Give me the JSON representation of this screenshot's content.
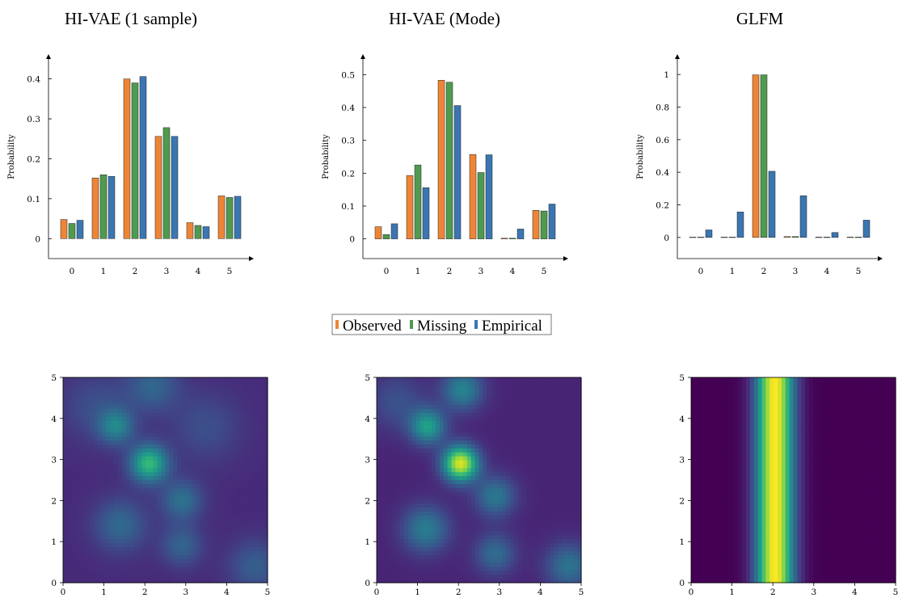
{
  "colors": {
    "observed": "#ee8536",
    "missing": "#4f9a4f",
    "empirical": "#3b76b1",
    "heat_low": "#440154",
    "heat_high": "#fde725"
  },
  "legend": [
    "Observed",
    "Missing",
    "Empirical"
  ],
  "chart_data": [
    {
      "type": "bar",
      "title": "HI-VAE (1 sample)",
      "ylabel": "Probability",
      "categories": [
        "0",
        "1",
        "2",
        "3",
        "4",
        "5"
      ],
      "yticks": [
        "0",
        "0.1",
        "0.2",
        "0.3",
        "0.4"
      ],
      "ylim": [
        -0.05,
        0.46
      ],
      "series": [
        {
          "name": "Observed",
          "values": [
            0.048,
            0.152,
            0.4,
            0.256,
            0.04,
            0.107
          ]
        },
        {
          "name": "Missing",
          "values": [
            0.038,
            0.16,
            0.39,
            0.278,
            0.033,
            0.103
          ]
        },
        {
          "name": "Empirical",
          "values": [
            0.046,
            0.156,
            0.406,
            0.256,
            0.03,
            0.106
          ]
        }
      ]
    },
    {
      "type": "bar",
      "title": "HI-VAE (Mode)",
      "ylabel": "Probability",
      "categories": [
        "0",
        "1",
        "2",
        "3",
        "4",
        "5"
      ],
      "yticks": [
        "0",
        "0.1",
        "0.2",
        "0.3",
        "0.4",
        "0.5"
      ],
      "ylim": [
        -0.06,
        0.56
      ],
      "series": [
        {
          "name": "Observed",
          "values": [
            0.037,
            0.193,
            0.483,
            0.257,
            0.002,
            0.087
          ]
        },
        {
          "name": "Missing",
          "values": [
            0.013,
            0.225,
            0.477,
            0.202,
            0.002,
            0.085
          ]
        },
        {
          "name": "Empirical",
          "values": [
            0.046,
            0.156,
            0.406,
            0.256,
            0.03,
            0.106
          ]
        }
      ]
    },
    {
      "type": "bar",
      "title": "GLFM",
      "ylabel": "Probability",
      "categories": [
        "0",
        "1",
        "2",
        "3",
        "4",
        "5"
      ],
      "yticks": [
        "0",
        "0.2",
        "0.4",
        "0.6",
        "0.8",
        "1"
      ],
      "ylim": [
        -0.13,
        1.12
      ],
      "series": [
        {
          "name": "Observed",
          "values": [
            0.002,
            0.002,
            0.998,
            0.005,
            0.002,
            0.002
          ]
        },
        {
          "name": "Missing",
          "values": [
            0.002,
            0.002,
            0.998,
            0.005,
            0.002,
            0.002
          ]
        },
        {
          "name": "Empirical",
          "values": [
            0.046,
            0.156,
            0.406,
            0.256,
            0.03,
            0.106
          ]
        }
      ]
    },
    {
      "type": "heatmap",
      "xlim": [
        0,
        5
      ],
      "ylim": [
        0,
        5
      ],
      "xticks": [
        "0",
        "1",
        "2",
        "3",
        "4",
        "5"
      ],
      "yticks": [
        "0",
        "1",
        "2",
        "3",
        "4",
        "5"
      ],
      "base": 0.12,
      "blobs": [
        {
          "x": 2.1,
          "y": 2.9,
          "sigma": 0.32,
          "intensity": 0.55
        },
        {
          "x": 1.3,
          "y": 3.8,
          "sigma": 0.3,
          "intensity": 0.3
        },
        {
          "x": 2.9,
          "y": 2.0,
          "sigma": 0.35,
          "intensity": 0.25
        },
        {
          "x": 1.4,
          "y": 1.4,
          "sigma": 0.45,
          "intensity": 0.22
        },
        {
          "x": 2.9,
          "y": 0.9,
          "sigma": 0.35,
          "intensity": 0.2
        },
        {
          "x": 2.2,
          "y": 4.8,
          "sigma": 0.45,
          "intensity": 0.2
        },
        {
          "x": 4.7,
          "y": 0.4,
          "sigma": 0.45,
          "intensity": 0.18
        },
        {
          "x": 0.8,
          "y": 4.3,
          "sigma": 0.6,
          "intensity": 0.12
        },
        {
          "x": 3.5,
          "y": 3.8,
          "sigma": 0.6,
          "intensity": 0.12
        }
      ]
    },
    {
      "type": "heatmap",
      "xlim": [
        0,
        5
      ],
      "ylim": [
        0,
        5
      ],
      "xticks": [
        "0",
        "1",
        "2",
        "3",
        "4",
        "5"
      ],
      "yticks": [
        "0",
        "1",
        "2",
        "3",
        "4",
        "5"
      ],
      "base": 0.1,
      "blobs": [
        {
          "x": 2.05,
          "y": 2.9,
          "sigma": 0.3,
          "intensity": 0.85
        },
        {
          "x": 1.25,
          "y": 3.8,
          "sigma": 0.3,
          "intensity": 0.45
        },
        {
          "x": 2.1,
          "y": 4.7,
          "sigma": 0.35,
          "intensity": 0.35
        },
        {
          "x": 2.9,
          "y": 2.1,
          "sigma": 0.35,
          "intensity": 0.3
        },
        {
          "x": 1.2,
          "y": 1.3,
          "sigma": 0.4,
          "intensity": 0.32
        },
        {
          "x": 2.9,
          "y": 0.7,
          "sigma": 0.35,
          "intensity": 0.25
        },
        {
          "x": 4.7,
          "y": 0.4,
          "sigma": 0.4,
          "intensity": 0.28
        },
        {
          "x": 0.5,
          "y": 4.4,
          "sigma": 0.5,
          "intensity": 0.15
        }
      ]
    },
    {
      "type": "heatmap",
      "xlim": [
        0,
        5
      ],
      "ylim": [
        0,
        5
      ],
      "xticks": [
        "0",
        "1",
        "2",
        "3",
        "4",
        "5"
      ],
      "yticks": [
        "0",
        "1",
        "2",
        "3",
        "4",
        "5"
      ],
      "column_peak": {
        "x": 2.05,
        "sigma": 0.33,
        "intensity": 1.0
      }
    }
  ]
}
